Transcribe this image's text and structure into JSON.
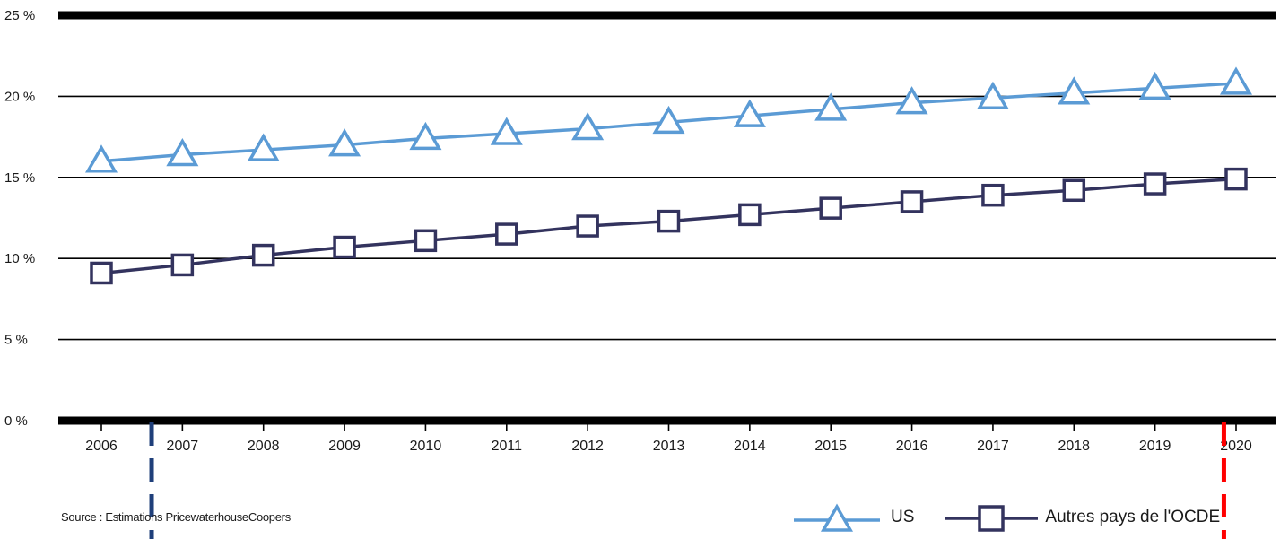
{
  "chart_data": {
    "type": "line",
    "x": [
      "2006",
      "2007",
      "2008",
      "2009",
      "2010",
      "2011",
      "2012",
      "2013",
      "2014",
      "2015",
      "2016",
      "2017",
      "2018",
      "2019",
      "2020"
    ],
    "series": [
      {
        "name": "US",
        "marker": "triangle",
        "color": "#5b9bd5",
        "values": [
          16.0,
          16.4,
          16.7,
          17.0,
          17.4,
          17.7,
          18.0,
          18.4,
          18.8,
          19.2,
          19.6,
          19.9,
          20.2,
          20.5,
          20.8
        ]
      },
      {
        "name": "Autres pays de l'OCDE",
        "marker": "square",
        "color": "#33335e",
        "values": [
          9.1,
          9.6,
          10.2,
          10.7,
          11.1,
          11.5,
          12.0,
          12.3,
          12.7,
          13.1,
          13.5,
          13.9,
          14.2,
          14.6,
          14.9
        ]
      }
    ],
    "ylim": [
      0,
      25
    ],
    "yticks": [
      0,
      5,
      10,
      15,
      20,
      25
    ],
    "ytick_labels": [
      "0 %",
      "5 %",
      "10 %",
      "15 %",
      "20 %",
      "25 %"
    ],
    "grid": true,
    "legend_position": "bottom-right",
    "annotations": [
      {
        "x_between": [
          "2006",
          "2007"
        ],
        "style": "dashed vertical",
        "color": "#1f3f7a"
      },
      {
        "x_between": [
          "2019",
          "2020"
        ],
        "style": "dashed vertical",
        "color": "#ff0000"
      }
    ]
  },
  "source_text": "Source : Estimations PricewaterhouseCoopers",
  "legend": {
    "us_label": "US",
    "ocde_label": "Autres pays de l'OCDE"
  }
}
